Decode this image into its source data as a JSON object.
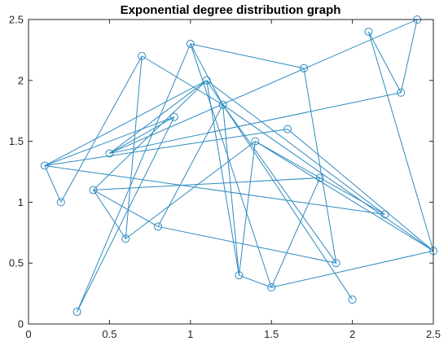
{
  "chart_data": {
    "type": "scatter",
    "title": "Exponential degree distribution graph",
    "xlabel": "",
    "ylabel": "",
    "xlim": [
      0,
      2.5
    ],
    "ylim": [
      0,
      2.5
    ],
    "x_ticks": [
      0,
      0.5,
      1,
      1.5,
      2,
      2.5
    ],
    "x_tick_labels": [
      "0",
      "0.5",
      "1",
      "1.5",
      "2",
      "2.5"
    ],
    "y_ticks": [
      0,
      0.5,
      1,
      1.5,
      2,
      2.5
    ],
    "y_tick_labels": [
      "0",
      "0.5",
      "1",
      "1.5",
      "2",
      "2.5"
    ],
    "grid": false,
    "colors": {
      "series": "#2e8bc0",
      "axes": "#262626"
    },
    "nodes": [
      {
        "x": 0.1,
        "y": 1.3
      },
      {
        "x": 0.2,
        "y": 1.0
      },
      {
        "x": 0.3,
        "y": 0.1
      },
      {
        "x": 0.4,
        "y": 1.1
      },
      {
        "x": 0.5,
        "y": 1.4
      },
      {
        "x": 0.6,
        "y": 0.7
      },
      {
        "x": 0.7,
        "y": 2.2
      },
      {
        "x": 0.8,
        "y": 0.8
      },
      {
        "x": 0.9,
        "y": 1.7
      },
      {
        "x": 1.0,
        "y": 2.3
      },
      {
        "x": 1.1,
        "y": 2.0
      },
      {
        "x": 1.2,
        "y": 1.8
      },
      {
        "x": 1.3,
        "y": 0.4
      },
      {
        "x": 1.4,
        "y": 1.5
      },
      {
        "x": 1.5,
        "y": 0.3
      },
      {
        "x": 1.6,
        "y": 1.6
      },
      {
        "x": 1.7,
        "y": 2.1
      },
      {
        "x": 1.8,
        "y": 1.2
      },
      {
        "x": 1.9,
        "y": 0.5
      },
      {
        "x": 2.0,
        "y": 0.2
      },
      {
        "x": 2.1,
        "y": 2.4
      },
      {
        "x": 2.2,
        "y": 0.9
      },
      {
        "x": 2.3,
        "y": 1.9
      },
      {
        "x": 2.4,
        "y": 2.5
      },
      {
        "x": 2.5,
        "y": 0.6
      }
    ],
    "edges": [
      [
        0,
        1
      ],
      [
        0,
        10
      ],
      [
        0,
        15
      ],
      [
        0,
        21
      ],
      [
        0,
        8
      ],
      [
        1,
        6
      ],
      [
        2,
        9
      ],
      [
        3,
        5
      ],
      [
        3,
        17
      ],
      [
        3,
        10
      ],
      [
        4,
        10
      ],
      [
        4,
        22
      ],
      [
        4,
        8
      ],
      [
        5,
        6
      ],
      [
        5,
        13
      ],
      [
        6,
        11
      ],
      [
        7,
        11
      ],
      [
        7,
        18
      ],
      [
        7,
        3
      ],
      [
        9,
        11
      ],
      [
        9,
        16
      ],
      [
        10,
        12
      ],
      [
        10,
        21
      ],
      [
        10,
        19
      ],
      [
        11,
        12
      ],
      [
        11,
        24
      ],
      [
        11,
        18
      ],
      [
        12,
        14
      ],
      [
        12,
        13
      ],
      [
        13,
        21
      ],
      [
        13,
        24
      ],
      [
        14,
        24
      ],
      [
        14,
        17
      ],
      [
        15,
        24
      ],
      [
        16,
        18
      ],
      [
        20,
        22
      ],
      [
        20,
        24
      ],
      [
        22,
        23
      ],
      [
        23,
        4
      ],
      [
        8,
        2
      ],
      [
        9,
        14
      ]
    ]
  }
}
